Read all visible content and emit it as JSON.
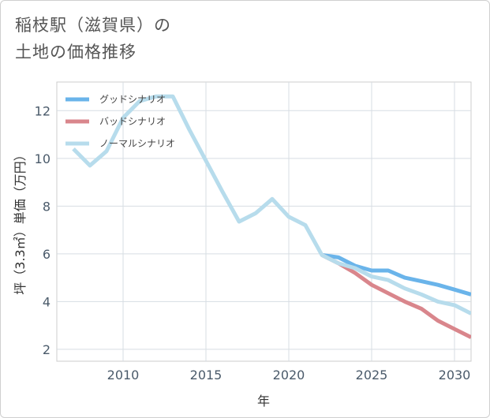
{
  "title_lines": [
    "稲枝駅（滋賀県）の",
    "土地の価格推移"
  ],
  "chart_data": {
    "type": "line",
    "title": "稲枝駅（滋賀県）の土地の価格推移",
    "xlabel": "年",
    "ylabel": "坪（3.3㎡）単価（万円）",
    "xlim": [
      2006,
      2031
    ],
    "ylim": [
      1.5,
      13.2
    ],
    "x_ticks": [
      2010,
      2015,
      2020,
      2025,
      2030
    ],
    "y_ticks": [
      2,
      4,
      6,
      8,
      10,
      12
    ],
    "legend_position": "top-left",
    "series": [
      {
        "name": "グッドシナリオ",
        "color": "#6ab4ea",
        "x": [
          2022,
          2023,
          2024,
          2025,
          2026,
          2027,
          2028,
          2029,
          2030,
          2031
        ],
        "y": [
          5.95,
          5.85,
          5.5,
          5.3,
          5.3,
          5.0,
          4.85,
          4.7,
          4.5,
          4.3
        ]
      },
      {
        "name": "バッドシナリオ",
        "color": "#d9868c",
        "x": [
          2022,
          2023,
          2024,
          2025,
          2026,
          2027,
          2028,
          2029,
          2030,
          2031
        ],
        "y": [
          5.95,
          5.6,
          5.2,
          4.7,
          4.35,
          4.0,
          3.7,
          3.2,
          2.85,
          2.5
        ]
      },
      {
        "name": "ノーマルシナリオ",
        "color": "#b7dcec",
        "x": [
          2007,
          2008,
          2009,
          2010,
          2011,
          2012,
          2013,
          2014,
          2015,
          2016,
          2017,
          2018,
          2019,
          2020,
          2021,
          2022,
          2023,
          2024,
          2025,
          2026,
          2027,
          2028,
          2029,
          2030,
          2031
        ],
        "y": [
          10.4,
          9.7,
          10.3,
          11.7,
          12.4,
          12.6,
          12.6,
          11.2,
          9.9,
          8.6,
          7.35,
          7.7,
          8.3,
          7.55,
          7.2,
          5.95,
          5.6,
          5.4,
          5.05,
          4.9,
          4.55,
          4.3,
          4.0,
          3.85,
          3.5
        ]
      }
    ]
  }
}
